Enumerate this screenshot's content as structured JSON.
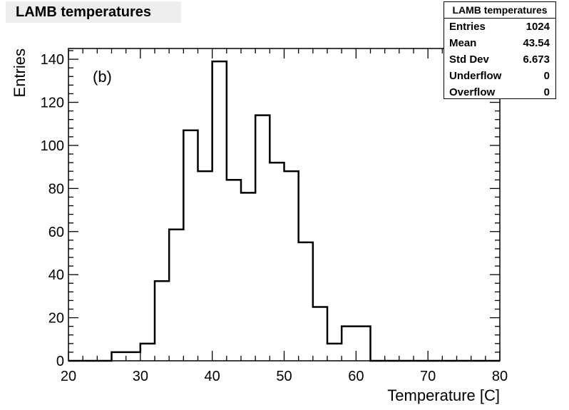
{
  "chart_data": {
    "type": "bar",
    "title": "LAMB temperatures",
    "xlabel": "Temperature [C]",
    "ylabel": "Entries",
    "annotation": "(b)",
    "xlim": [
      20,
      80
    ],
    "ylim": [
      0,
      145
    ],
    "x_ticks": [
      20,
      30,
      40,
      50,
      60,
      70,
      80
    ],
    "y_ticks": [
      0,
      20,
      40,
      60,
      80,
      100,
      120,
      140
    ],
    "bin_edges": [
      20,
      22,
      24,
      26,
      28,
      30,
      32,
      34,
      36,
      38,
      40,
      42,
      44,
      46,
      48,
      50,
      52,
      54,
      56,
      58,
      60,
      62,
      64,
      66,
      68,
      70,
      72,
      74,
      76,
      78,
      80
    ],
    "values": [
      0,
      0,
      0,
      4,
      4,
      8,
      37,
      61,
      107,
      88,
      139,
      84,
      78,
      114,
      92,
      88,
      55,
      25,
      8,
      16,
      16,
      0,
      0,
      0,
      0,
      0,
      0,
      0,
      0,
      0
    ],
    "grid": false,
    "stats": {
      "title": "LAMB temperatures",
      "rows": [
        {
          "label": "Entries",
          "value": "1024"
        },
        {
          "label": "Mean",
          "value": "43.54"
        },
        {
          "label": "Std Dev",
          "value": "6.673"
        },
        {
          "label": "Underflow",
          "value": "0"
        },
        {
          "label": "Overflow",
          "value": "0"
        }
      ]
    }
  }
}
